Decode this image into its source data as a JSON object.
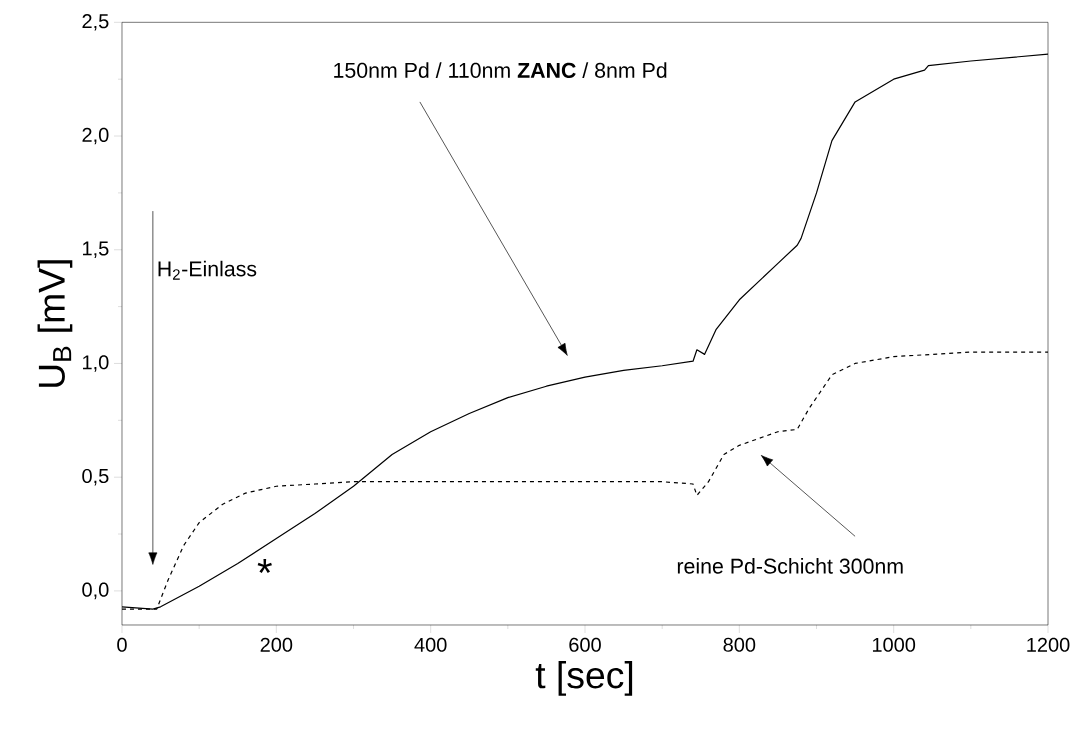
{
  "chart_data": {
    "type": "line",
    "xlabel": "t [sec]",
    "ylabel": "U$_{B}$ [mV]",
    "xlim": [
      0,
      1200
    ],
    "ylim": [
      -0.15,
      2.5
    ],
    "xticks": [
      0,
      200,
      400,
      600,
      800,
      1000,
      1200
    ],
    "yticks": [
      {
        "value": 0,
        "label": "0,0"
      },
      {
        "value": 0.5,
        "label": "0,5"
      },
      {
        "value": 1,
        "label": "1,0"
      },
      {
        "value": 1.5,
        "label": "1,5"
      },
      {
        "value": 2,
        "label": "2,0"
      },
      {
        "value": 2.5,
        "label": "2,5"
      }
    ],
    "series": [
      {
        "color": "#000000",
        "line_style": "solid",
        "x": [
          0,
          40,
          50,
          100,
          150,
          200,
          250,
          300,
          350,
          400,
          450,
          500,
          550,
          600,
          650,
          700,
          740,
          745,
          755,
          770,
          800,
          850,
          875,
          880,
          900,
          920,
          950,
          1000,
          1040,
          1045,
          1100,
          1200
        ],
        "values": [
          -0.07,
          -0.08,
          -0.07,
          0.02,
          0.12,
          0.23,
          0.34,
          0.46,
          0.6,
          0.7,
          0.78,
          0.85,
          0.9,
          0.94,
          0.97,
          0.99,
          1.01,
          1.06,
          1.04,
          1.15,
          1.28,
          1.44,
          1.52,
          1.55,
          1.75,
          1.98,
          2.15,
          2.25,
          2.29,
          2.31,
          2.33,
          2.36
        ]
      },
      {
        "color": "#000000",
        "line_style": "dashed",
        "x": [
          0,
          45,
          60,
          80,
          100,
          130,
          160,
          200,
          250,
          300,
          400,
          500,
          600,
          700,
          740,
          745,
          760,
          780,
          800,
          850,
          875,
          890,
          920,
          950,
          1000,
          1100,
          1200
        ],
        "values": [
          -0.08,
          -0.08,
          0.05,
          0.2,
          0.3,
          0.38,
          0.43,
          0.46,
          0.47,
          0.48,
          0.48,
          0.48,
          0.48,
          0.48,
          0.47,
          0.42,
          0.48,
          0.6,
          0.64,
          0.7,
          0.71,
          0.8,
          0.95,
          1.0,
          1.03,
          1.05,
          1.05
        ]
      }
    ],
    "annotations": [
      "150nm Pd / 110nm **ZANC** / 8nm Pd",
      "reine Pd-Schicht 300nm",
      "H$_{2}$-Einlass",
      "*"
    ]
  }
}
